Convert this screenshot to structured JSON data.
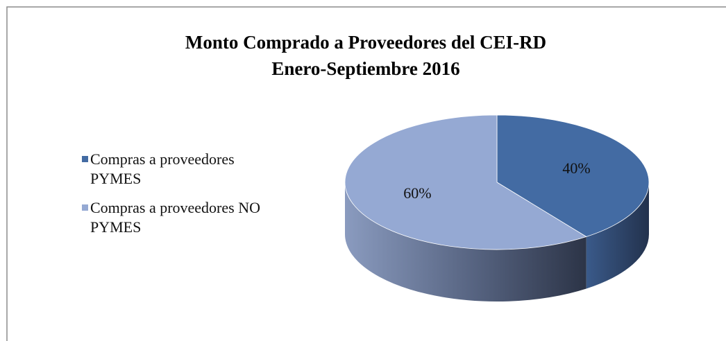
{
  "chart_data": {
    "type": "pie",
    "title": "Monto Comprado a Proveedores del CEI-RD",
    "subtitle": "Enero-Septiembre 2016",
    "labels": [
      "Compras a proveedores PYMES",
      "Compras a proveedores NO PYMES"
    ],
    "values": [
      40,
      60
    ],
    "value_labels": [
      "40%",
      "60%"
    ],
    "colors": [
      "#436ba3",
      "#95a9d3"
    ],
    "legend": "left"
  }
}
